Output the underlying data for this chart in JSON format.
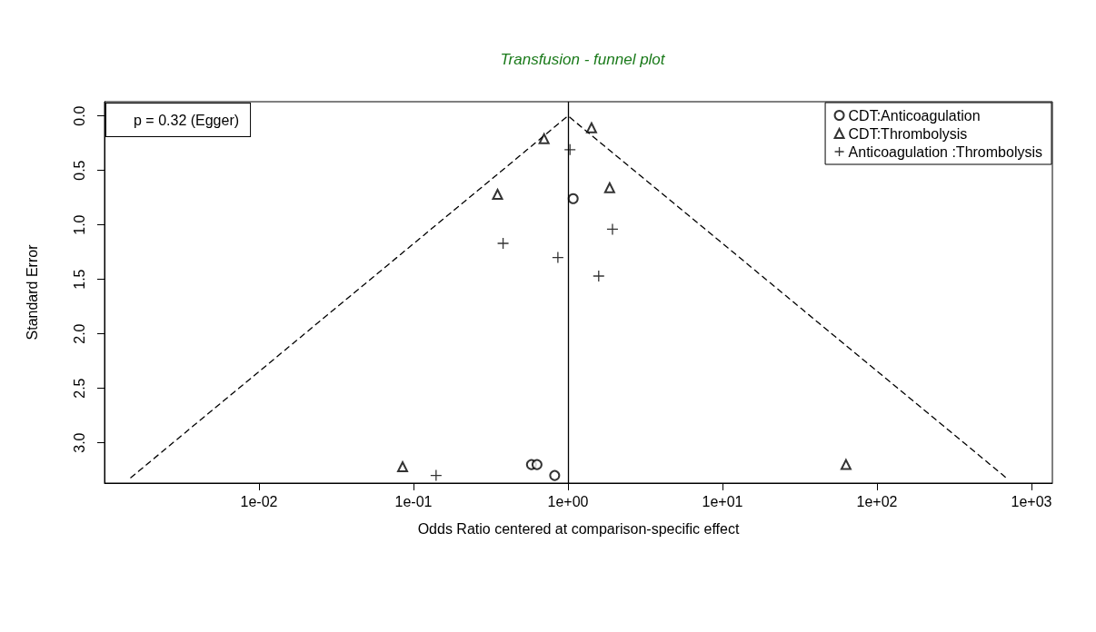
{
  "chart_data": {
    "type": "scatter",
    "title": "Transfusion - funnel plot",
    "xlabel": "Odds Ratio centered at comparison-specific effect",
    "ylabel": "Standard Error",
    "log": "x",
    "xlim": [
      0.001,
      1365
    ],
    "ylim": [
      3.37,
      -0.13
    ],
    "xticks": [
      {
        "value": 0.01,
        "label": "1e-02"
      },
      {
        "value": 0.1,
        "label": "1e-01"
      },
      {
        "value": 1,
        "label": "1e+00"
      },
      {
        "value": 10,
        "label": "1e+01"
      },
      {
        "value": 100,
        "label": "1e+02"
      },
      {
        "value": 1000,
        "label": "1e+03"
      }
    ],
    "yticks": [
      {
        "value": 0,
        "label": "0.0"
      },
      {
        "value": 0.5,
        "label": "0.5"
      },
      {
        "value": 1,
        "label": "1.0"
      },
      {
        "value": 1.5,
        "label": "1.5"
      },
      {
        "value": 2,
        "label": "2.0"
      },
      {
        "value": 2.5,
        "label": "2.5"
      },
      {
        "value": 3,
        "label": "3.0"
      }
    ],
    "series": [
      {
        "name": "CDT:Anticoagulation",
        "color": "#000000",
        "marker": "circle",
        "x": [
          1.08,
          0.58,
          0.63,
          0.82
        ],
        "values": [
          0.76,
          3.2,
          3.2,
          3.3
        ]
      },
      {
        "name": "CDT:Thrombolysis",
        "color": "#000000",
        "marker": "triangle",
        "x": [
          0.7,
          1.42,
          0.35,
          1.86,
          0.085,
          63
        ],
        "values": [
          0.21,
          0.11,
          0.72,
          0.66,
          3.22,
          3.2
        ]
      },
      {
        "name": "Anticoagulation :Thrombolysis",
        "color": "#000000",
        "marker": "cross",
        "x": [
          1.03,
          0.38,
          0.86,
          1.94,
          1.58,
          0.14
        ],
        "values": [
          0.31,
          1.17,
          1.3,
          1.04,
          1.47,
          3.3
        ]
      },
      {
        "type": "line",
        "color": "#000000",
        "marker": "none",
        "line_style": "dashed",
        "x": [
          0.00148,
          1,
          684
        ],
        "values": [
          3.32,
          0,
          3.32
        ]
      }
    ],
    "ref_lines": [
      {
        "axis": "x",
        "value": 1,
        "color": "#000000",
        "line_style": "solid"
      }
    ],
    "legend": "top right",
    "grid": false,
    "annotations": [
      "p = 0.32 (Egger)"
    ]
  }
}
